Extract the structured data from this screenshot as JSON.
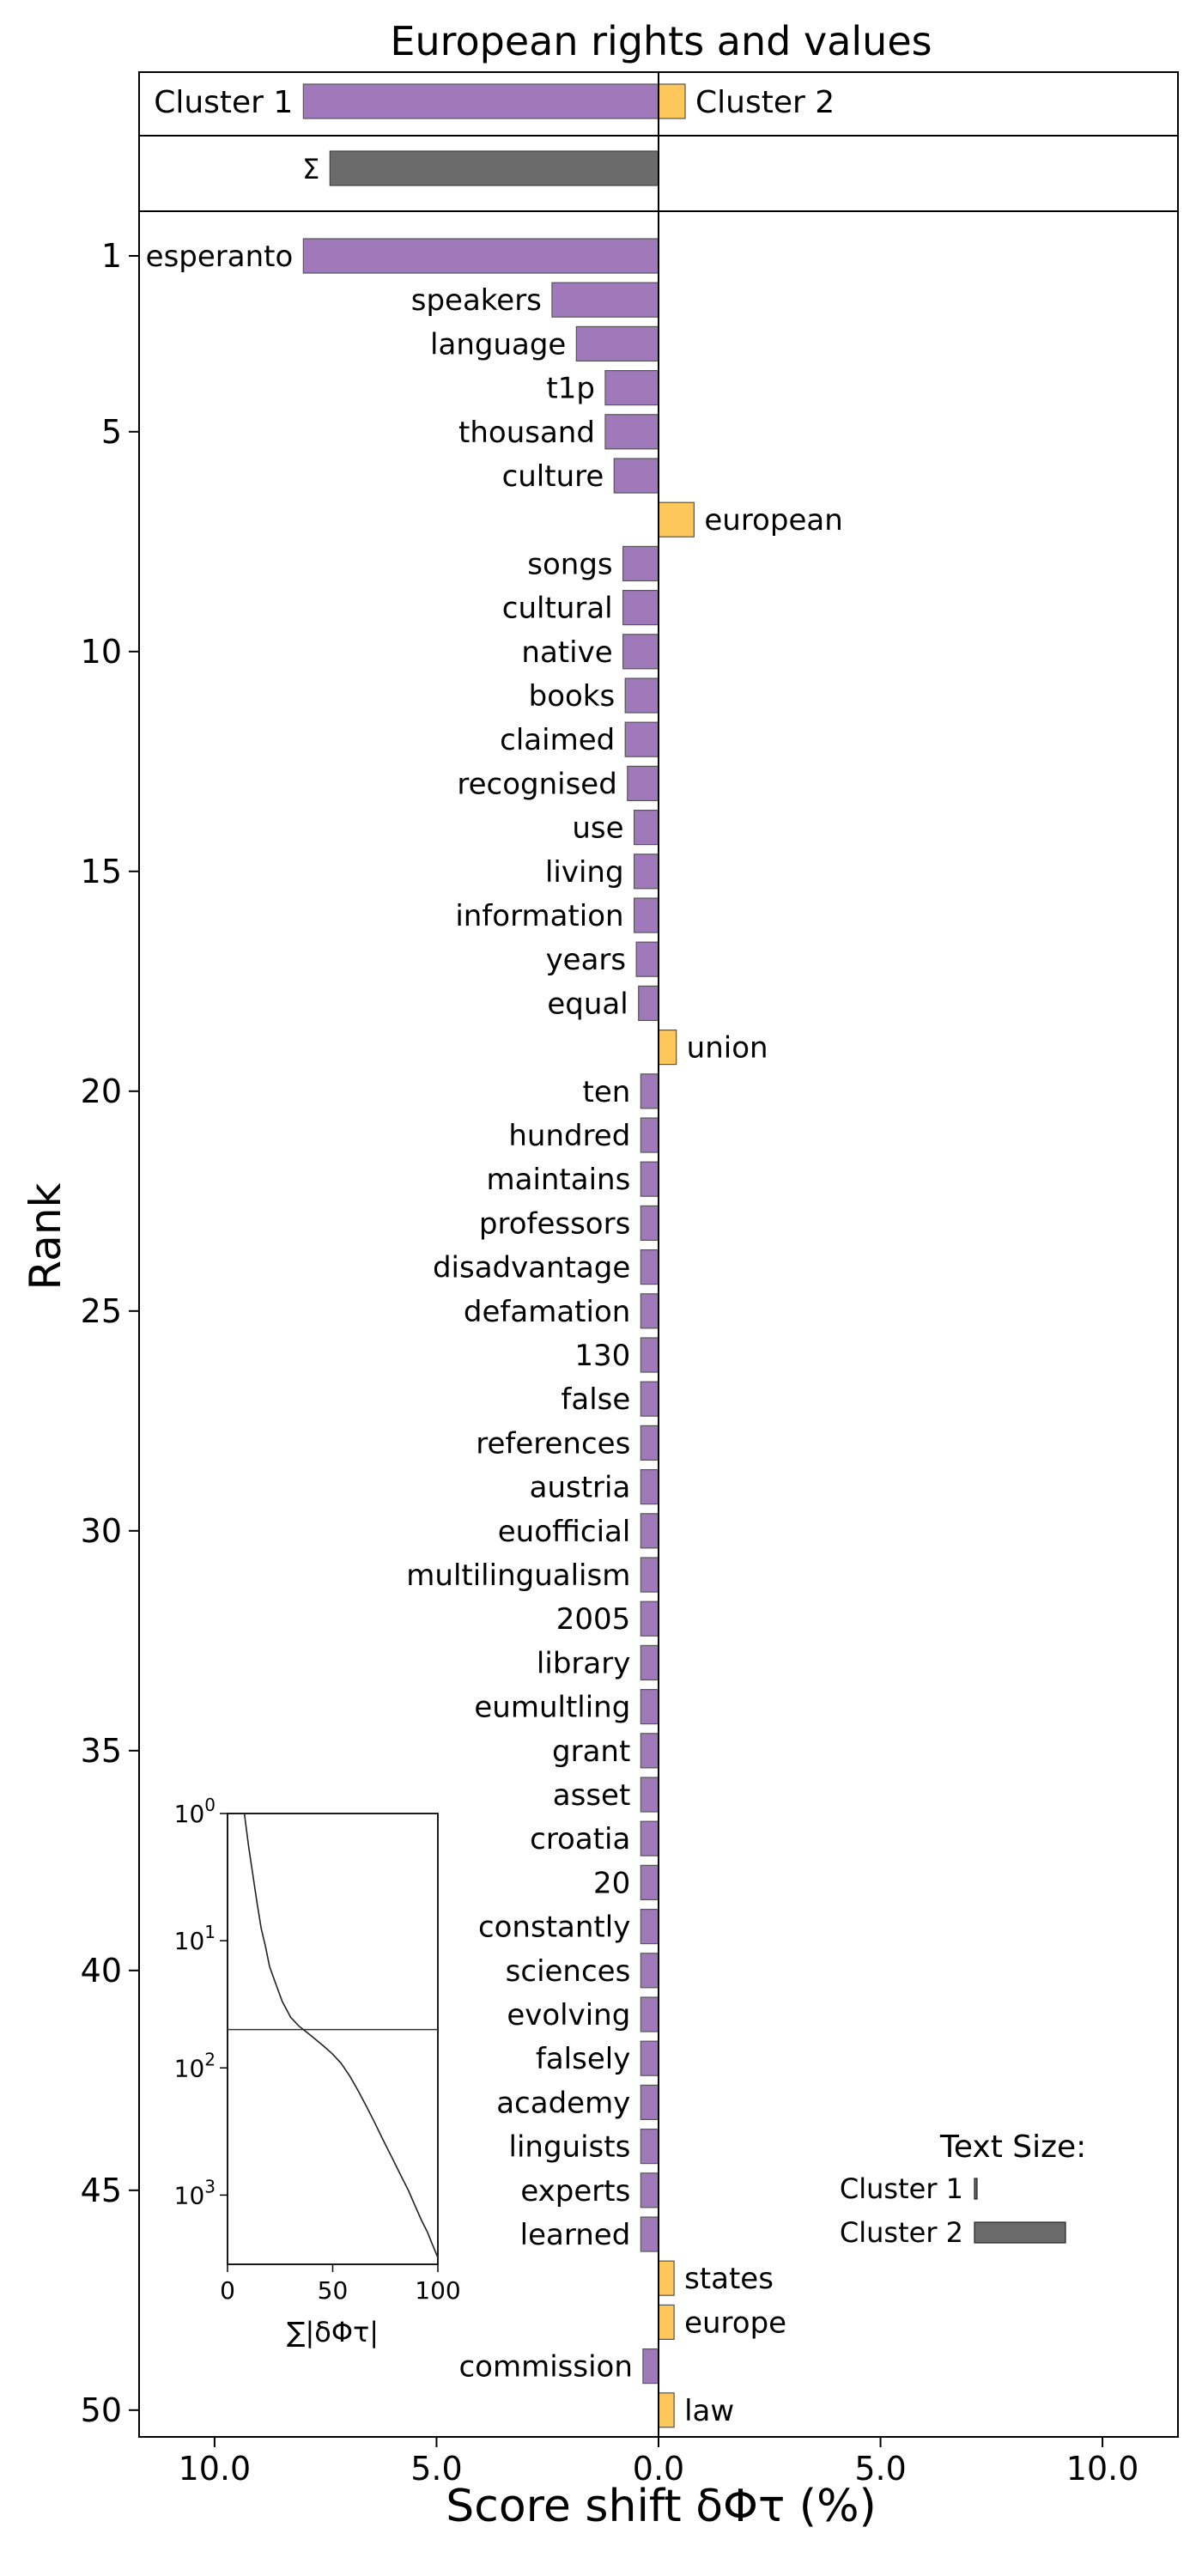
{
  "chart_data": {
    "type": "bar",
    "orientation": "horizontal",
    "title": "European rights and values",
    "xlabel": "Score shift δΦτ (%)",
    "ylabel": "Rank",
    "xlim": [
      -11.7,
      11.7
    ],
    "x_ticks": [
      {
        "value": -10,
        "label": "10.0"
      },
      {
        "value": -5,
        "label": "5.0"
      },
      {
        "value": 0,
        "label": "0.0"
      },
      {
        "value": 5,
        "label": "5.0"
      },
      {
        "value": 10,
        "label": "10.0"
      }
    ],
    "y_ticks": [
      1,
      5,
      10,
      15,
      20,
      25,
      30,
      35,
      40,
      45,
      50
    ],
    "colors": {
      "cluster1": "#9f79b9",
      "cluster2": "#fdc75b",
      "sum": "#6b6b6b"
    },
    "summary": {
      "cluster1_label": "Cluster 1",
      "cluster2_label": "Cluster 2",
      "cluster1_value": -8.0,
      "cluster2_value": 0.6,
      "sum_symbol": "Σ",
      "sum_value": -7.4
    },
    "words": [
      {
        "rank": 1,
        "word": "esperanto",
        "value": -8.0
      },
      {
        "rank": 2,
        "word": "speakers",
        "value": -2.4
      },
      {
        "rank": 3,
        "word": "language",
        "value": -1.85
      },
      {
        "rank": 4,
        "word": "t1p",
        "value": -1.2
      },
      {
        "rank": 5,
        "word": "thousand",
        "value": -1.2
      },
      {
        "rank": 6,
        "word": "culture",
        "value": -1.0
      },
      {
        "rank": 7,
        "word": "european",
        "value": 0.8
      },
      {
        "rank": 8,
        "word": "songs",
        "value": -0.8
      },
      {
        "rank": 9,
        "word": "cultural",
        "value": -0.8
      },
      {
        "rank": 10,
        "word": "native",
        "value": -0.8
      },
      {
        "rank": 11,
        "word": "books",
        "value": -0.75
      },
      {
        "rank": 12,
        "word": "claimed",
        "value": -0.75
      },
      {
        "rank": 13,
        "word": "recognised",
        "value": -0.7
      },
      {
        "rank": 14,
        "word": "use",
        "value": -0.55
      },
      {
        "rank": 15,
        "word": "living",
        "value": -0.55
      },
      {
        "rank": 16,
        "word": "information",
        "value": -0.55
      },
      {
        "rank": 17,
        "word": "years",
        "value": -0.5
      },
      {
        "rank": 18,
        "word": "equal",
        "value": -0.45
      },
      {
        "rank": 19,
        "word": "union",
        "value": 0.4
      },
      {
        "rank": 20,
        "word": "ten",
        "value": -0.4
      },
      {
        "rank": 21,
        "word": "hundred",
        "value": -0.4
      },
      {
        "rank": 22,
        "word": "maintains",
        "value": -0.4
      },
      {
        "rank": 23,
        "word": "professors",
        "value": -0.4
      },
      {
        "rank": 24,
        "word": "disadvantage",
        "value": -0.4
      },
      {
        "rank": 25,
        "word": "defamation",
        "value": -0.4
      },
      {
        "rank": 26,
        "word": "130",
        "value": -0.4
      },
      {
        "rank": 27,
        "word": "false",
        "value": -0.4
      },
      {
        "rank": 28,
        "word": "references",
        "value": -0.4
      },
      {
        "rank": 29,
        "word": "austria",
        "value": -0.4
      },
      {
        "rank": 30,
        "word": "euofficial",
        "value": -0.4
      },
      {
        "rank": 31,
        "word": "multilingualism",
        "value": -0.4
      },
      {
        "rank": 32,
        "word": "2005",
        "value": -0.4
      },
      {
        "rank": 33,
        "word": "library",
        "value": -0.4
      },
      {
        "rank": 34,
        "word": "eumultling",
        "value": -0.4
      },
      {
        "rank": 35,
        "word": "grant",
        "value": -0.4
      },
      {
        "rank": 36,
        "word": "asset",
        "value": -0.4
      },
      {
        "rank": 37,
        "word": "croatia",
        "value": -0.4
      },
      {
        "rank": 38,
        "word": "20",
        "value": -0.4
      },
      {
        "rank": 39,
        "word": "constantly",
        "value": -0.4
      },
      {
        "rank": 40,
        "word": "sciences",
        "value": -0.4
      },
      {
        "rank": 41,
        "word": "evolving",
        "value": -0.4
      },
      {
        "rank": 42,
        "word": "falsely",
        "value": -0.4
      },
      {
        "rank": 43,
        "word": "academy",
        "value": -0.4
      },
      {
        "rank": 44,
        "word": "linguists",
        "value": -0.4
      },
      {
        "rank": 45,
        "word": "experts",
        "value": -0.4
      },
      {
        "rank": 46,
        "word": "learned",
        "value": -0.4
      },
      {
        "rank": 47,
        "word": "states",
        "value": 0.35
      },
      {
        "rank": 48,
        "word": "europe",
        "value": 0.35
      },
      {
        "rank": 49,
        "word": "commission",
        "value": -0.35
      },
      {
        "rank": 50,
        "word": "law",
        "value": 0.35
      }
    ],
    "inset": {
      "xlabel": "∑|δΦτ|",
      "xlim": [
        0,
        100
      ],
      "x_ticks": [
        0,
        50,
        100
      ],
      "y_ticks": [
        {
          "base": "10",
          "exp": "0",
          "value": 1
        },
        {
          "base": "10",
          "exp": "1",
          "value": 10
        },
        {
          "base": "10",
          "exp": "2",
          "value": 100
        },
        {
          "base": "10",
          "exp": "3",
          "value": 1000
        }
      ],
      "ylim": [
        1,
        3500
      ],
      "hline": 50,
      "curve": [
        [
          8,
          1
        ],
        [
          10,
          1.8
        ],
        [
          12,
          3
        ],
        [
          14,
          5
        ],
        [
          16,
          8
        ],
        [
          18,
          11
        ],
        [
          20,
          16
        ],
        [
          23,
          22
        ],
        [
          26,
          30
        ],
        [
          30,
          40
        ],
        [
          34,
          47
        ],
        [
          38,
          53
        ],
        [
          42,
          60
        ],
        [
          46,
          68
        ],
        [
          50,
          78
        ],
        [
          54,
          92
        ],
        [
          58,
          115
        ],
        [
          62,
          150
        ],
        [
          66,
          200
        ],
        [
          70,
          270
        ],
        [
          74,
          370
        ],
        [
          78,
          500
        ],
        [
          82,
          680
        ],
        [
          86,
          920
        ],
        [
          89,
          1200
        ],
        [
          92,
          1550
        ],
        [
          95,
          1950
        ],
        [
          97,
          2350
        ],
        [
          98.5,
          2700
        ],
        [
          100,
          3100
        ]
      ]
    },
    "legend": {
      "title": "Text Size:",
      "entries": [
        {
          "label": "Cluster 1",
          "value": 0.02
        },
        {
          "label": "Cluster 2",
          "value": 1.0
        }
      ]
    }
  }
}
